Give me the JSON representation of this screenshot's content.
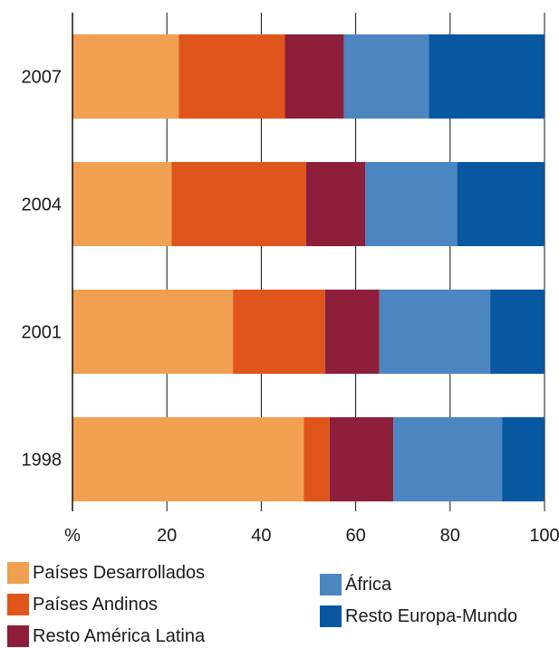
{
  "chart_data": {
    "type": "bar",
    "orientation": "horizontal",
    "stacked": true,
    "categories": [
      "2007",
      "2004",
      "2001",
      "1998"
    ],
    "series": [
      {
        "name": "Países Desarrollados",
        "color": "#f0a050",
        "values": [
          22.5,
          21,
          34,
          49
        ]
      },
      {
        "name": "Países Andinos",
        "color": "#e0551c",
        "values": [
          22.5,
          28.5,
          19.5,
          5.5
        ]
      },
      {
        "name": "Resto América Latina",
        "color": "#8e1f3a",
        "values": [
          12.5,
          12.5,
          11.5,
          13.5
        ]
      },
      {
        "name": "África",
        "color": "#4b86c0",
        "values": [
          18,
          19.5,
          23.5,
          23
        ]
      },
      {
        "name": "Resto Europa-Mundo",
        "color": "#0758a0",
        "values": [
          24.5,
          18.5,
          11.5,
          9
        ]
      }
    ],
    "x_axis": {
      "unit_label": "%",
      "ticks": [
        "20",
        "40",
        "60",
        "80",
        "100"
      ],
      "xlim": [
        0,
        100
      ]
    },
    "grid": "vertical",
    "legend_position": "bottom"
  }
}
